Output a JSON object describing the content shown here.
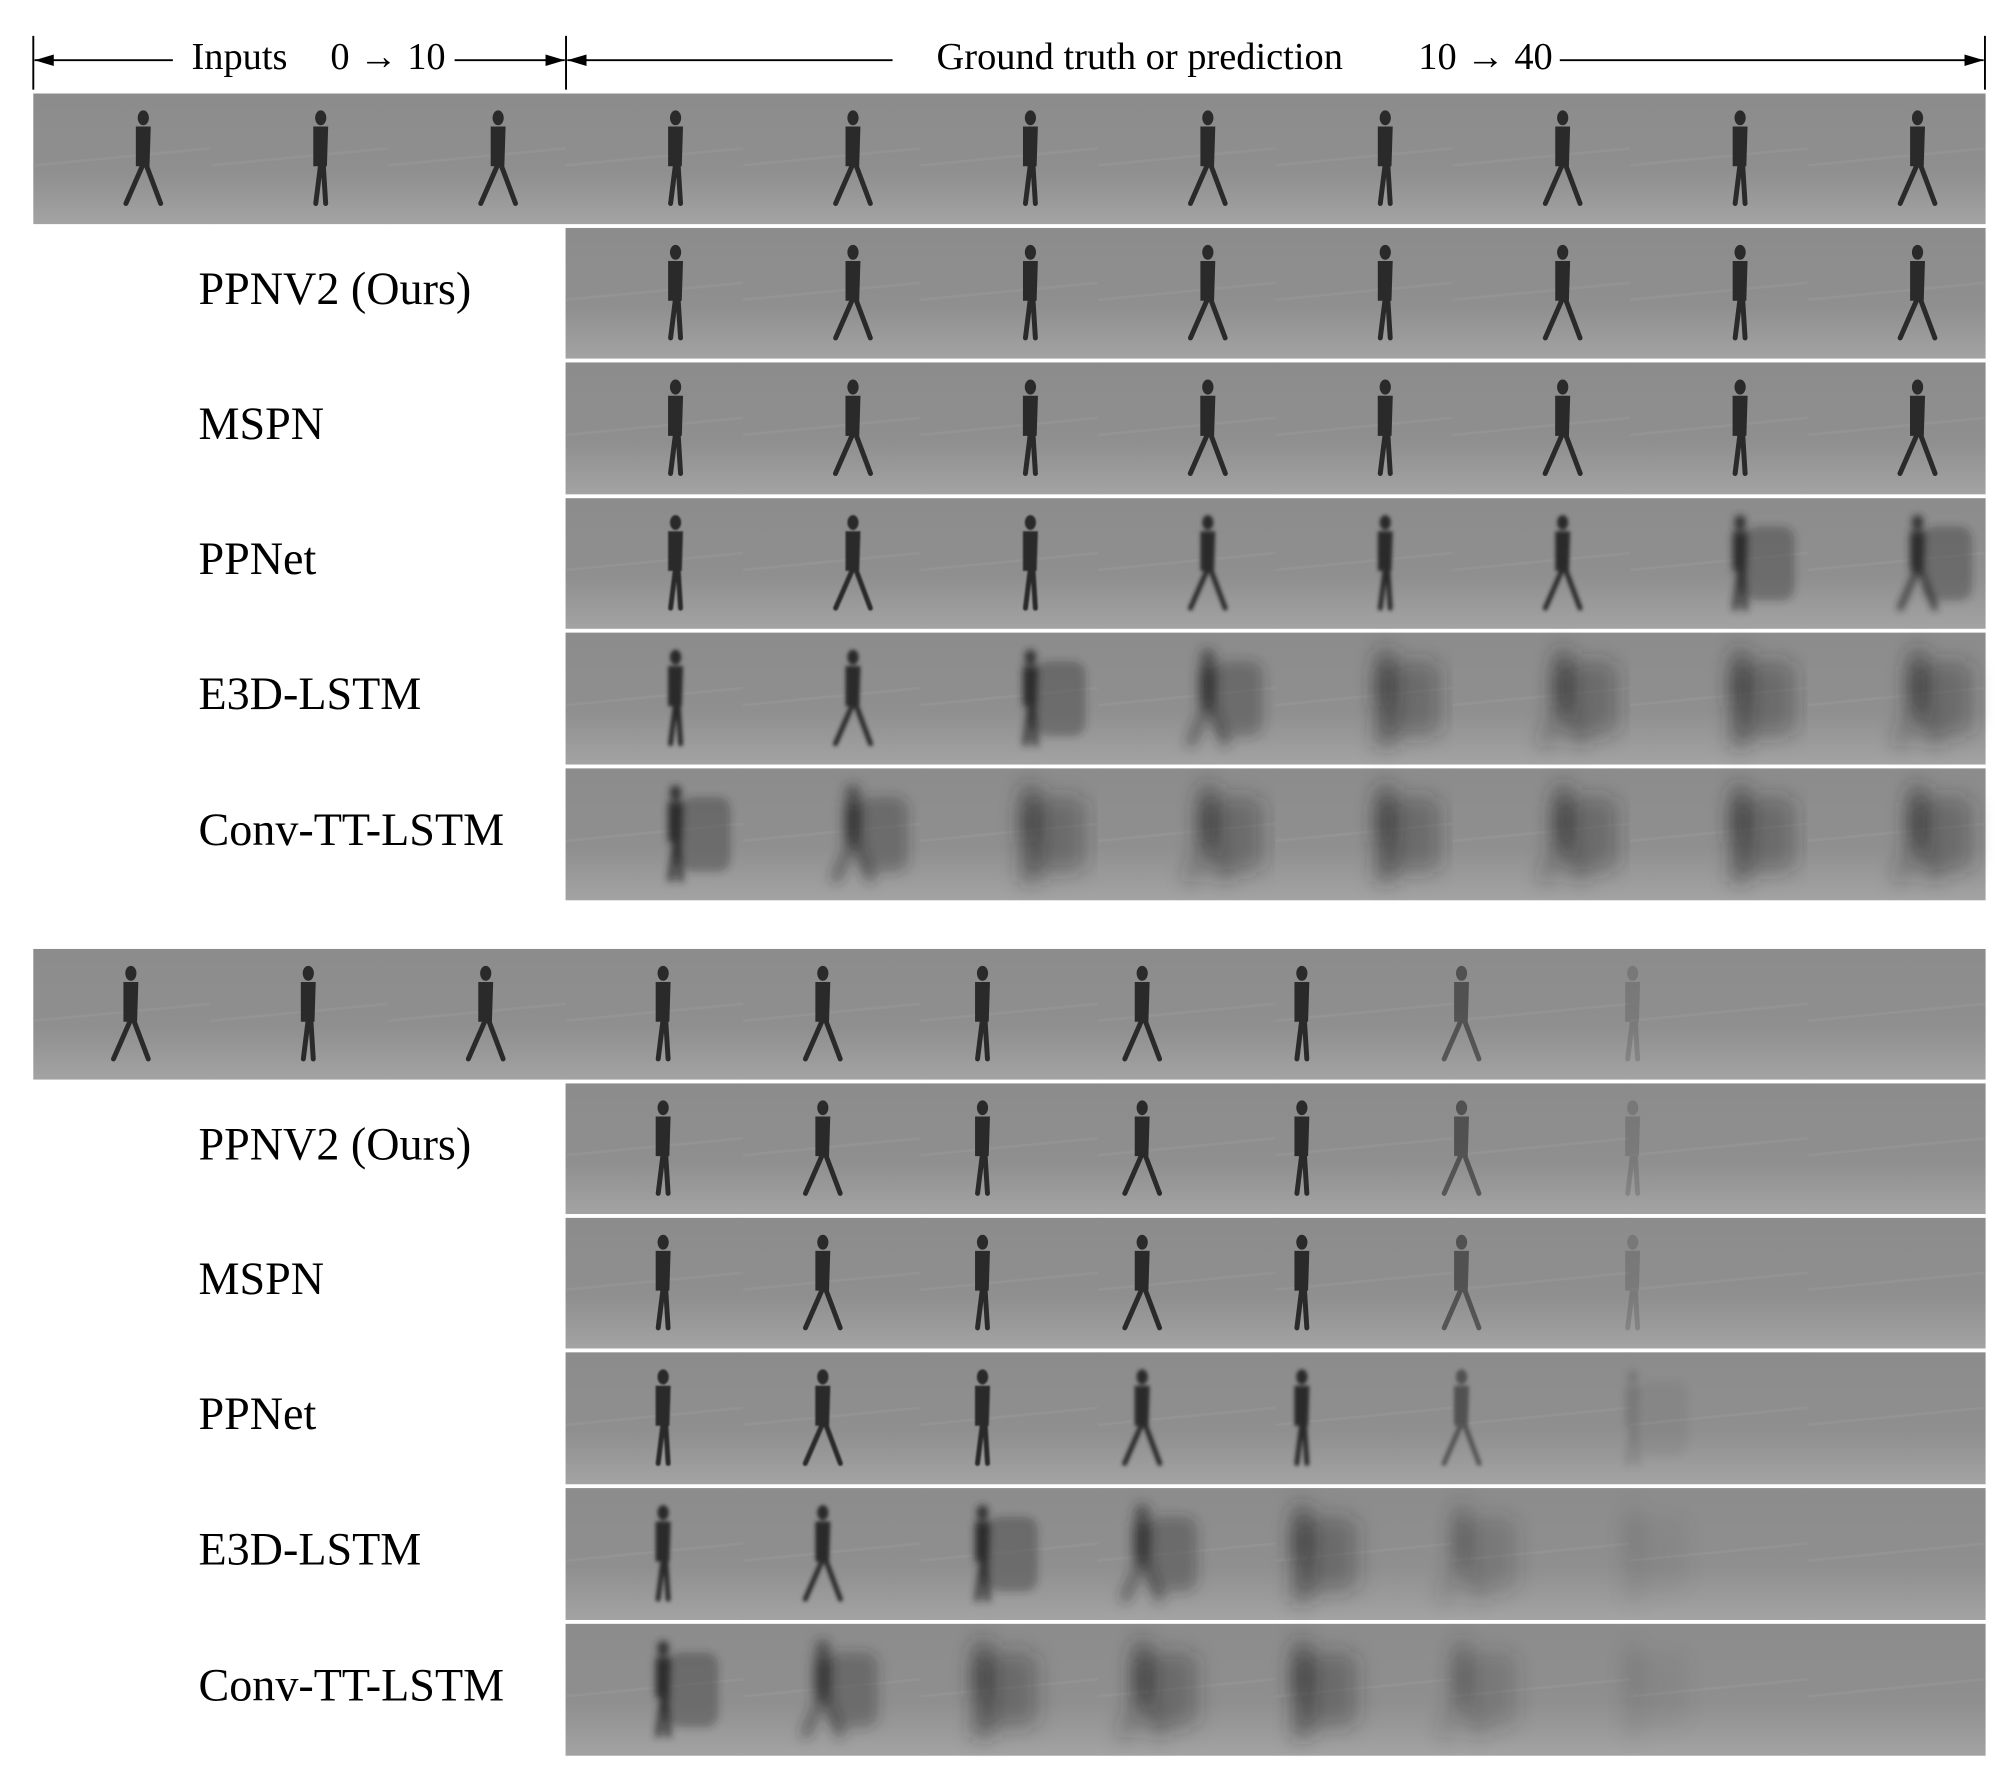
{
  "header": {
    "inputs_label": "Inputs",
    "inputs_range": "0 → 10",
    "output_label": "Ground truth or prediction",
    "output_range": "10 → 40"
  },
  "groups": [
    {
      "methods": [
        "PPNV2 (Ours)",
        "MSPN",
        "PPNet",
        "E3D-LSTM",
        "Conv-TT-LSTM"
      ]
    },
    {
      "methods": [
        "PPNV2 (Ours)",
        "MSPN",
        "PPNet",
        "E3D-LSTM",
        "Conv-TT-LSTM"
      ]
    }
  ]
}
